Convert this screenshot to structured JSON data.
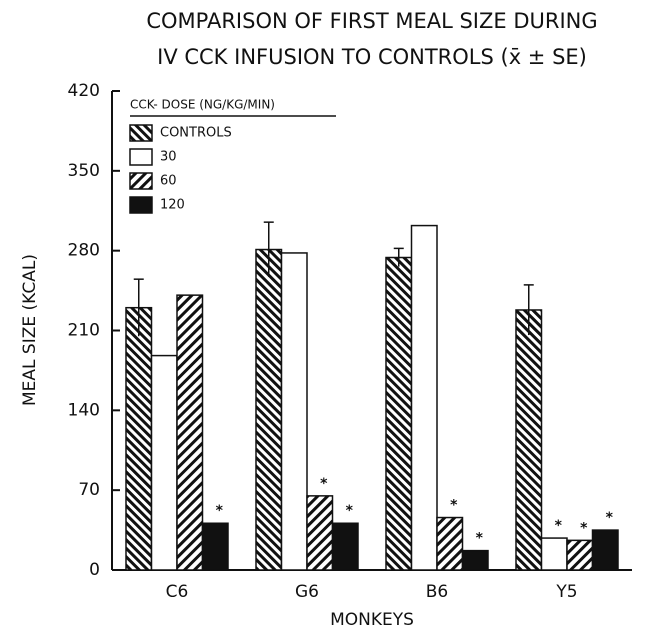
{
  "chart_data": {
    "type": "bar",
    "title": [
      "COMPARISON OF FIRST MEAL SIZE DURING",
      "IV CCK INFUSION TO CONTROLS (x̄ ± SE)"
    ],
    "xlabel": "MONKEYS",
    "ylabel": "MEAL SIZE (KCAL)",
    "legend_title": "CCK- DOSE (NG/KG/MIN)",
    "legend": "upper left",
    "categories": [
      "C6",
      "G6",
      "B6",
      "Y5"
    ],
    "series": [
      {
        "name": "CONTROLS",
        "color": "#111111",
        "hatch": "back",
        "values": [
          230,
          281,
          274,
          228
        ],
        "errors": [
          25,
          24,
          8,
          22
        ],
        "significance": [
          null,
          null,
          null,
          null
        ]
      },
      {
        "name": "30",
        "color": "#ffffff",
        "hatch": null,
        "values": [
          188,
          278,
          302,
          28
        ],
        "significance": [
          null,
          null,
          null,
          "*"
        ]
      },
      {
        "name": "60",
        "color": "#111111",
        "hatch": "forward",
        "values": [
          241,
          65,
          46,
          26
        ],
        "significance": [
          null,
          "*",
          "*",
          "*"
        ]
      },
      {
        "name": "120",
        "color": "#111111",
        "hatch": "solid",
        "values": [
          41,
          41,
          17,
          35
        ],
        "significance": [
          "*",
          "*",
          "*",
          "*"
        ]
      }
    ],
    "ylim": [
      0,
      420
    ],
    "yticks": [
      0,
      70,
      140,
      210,
      280,
      350,
      420
    ],
    "grid": false
  }
}
